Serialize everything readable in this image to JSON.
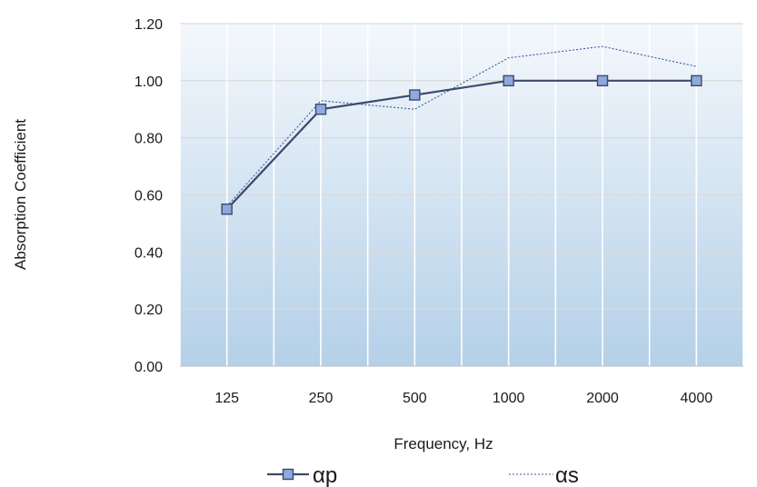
{
  "chart_data": {
    "type": "line",
    "title": "",
    "xlabel": "Frequency, Hz",
    "ylabel": "Absorption Coefficient",
    "categories": [
      "125",
      "250",
      "500",
      "1000",
      "2000",
      "4000"
    ],
    "ylim": [
      0,
      1.2
    ],
    "yticks": [
      "0.00",
      "0.20",
      "0.40",
      "0.60",
      "0.80",
      "1.00",
      "1.20"
    ],
    "grid": true,
    "legend_position": "bottom",
    "series": [
      {
        "name": "αp",
        "values": [
          0.55,
          0.9,
          0.95,
          1.0,
          1.0,
          1.0
        ],
        "color": "#3b4a6b",
        "marker": "square",
        "marker_fill": "#8ea9db",
        "style": "solid"
      },
      {
        "name": "αs",
        "values": [
          0.56,
          0.93,
          0.9,
          1.08,
          1.12,
          1.05
        ],
        "color": "#3b5998",
        "marker": "none",
        "style": "dotted"
      }
    ],
    "background_gradient": [
      "#f4f8fc",
      "#b4d0e8"
    ]
  }
}
